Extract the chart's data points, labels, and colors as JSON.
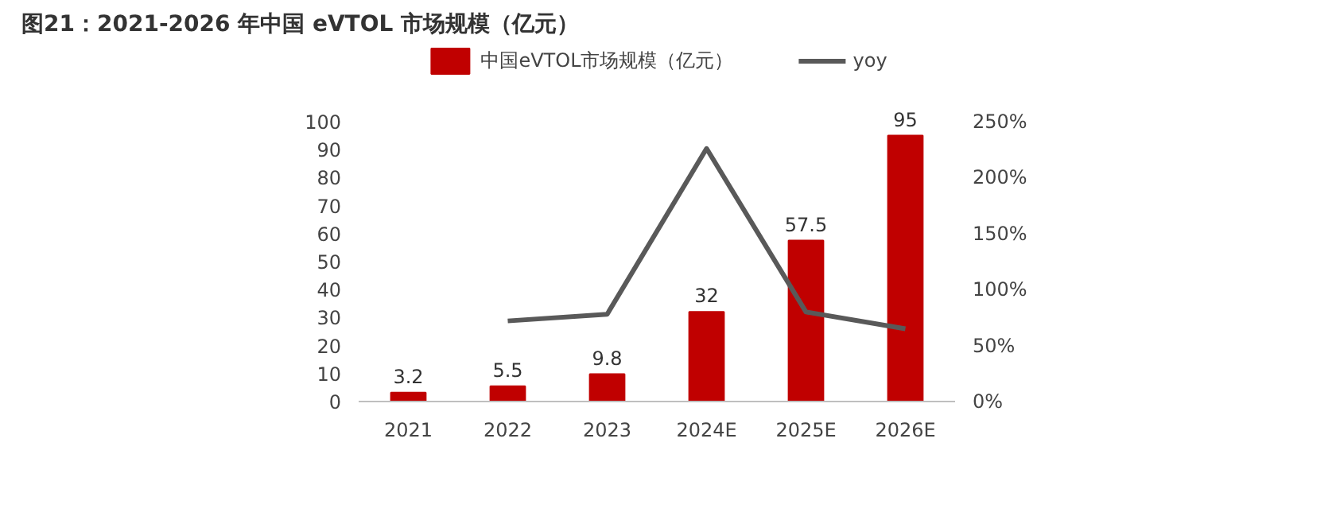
{
  "chart_data": {
    "type": "bar",
    "title": "图21：2021-2026 年中国 eVTOL 市场规模（亿元）",
    "categories": [
      "2021",
      "2022",
      "2023",
      "2024E",
      "2025E",
      "2026E"
    ],
    "series": [
      {
        "name": "中国eVTOL市场规模（亿元）",
        "color": "#c00000",
        "values": [
          3.2,
          5.5,
          9.8,
          32,
          57.5,
          95
        ],
        "value_labels": [
          "3.2",
          "5.5",
          "9.8",
          "32",
          "57.5",
          "95"
        ]
      },
      {
        "name": "yoy",
        "type": "line",
        "axis": "y2",
        "color": "#595959",
        "values": [
          null,
          72,
          78,
          226,
          80,
          65
        ]
      }
    ],
    "ylim": [
      0,
      100
    ],
    "yticks": [
      0,
      10,
      20,
      30,
      40,
      50,
      60,
      70,
      80,
      90,
      100
    ],
    "y2lim": [
      0,
      250
    ],
    "y2ticks": [
      {
        "value": 0,
        "label": "0%"
      },
      {
        "value": 50,
        "label": "50%"
      },
      {
        "value": 100,
        "label": "100%"
      },
      {
        "value": 150,
        "label": "150%"
      },
      {
        "value": 200,
        "label": "200%"
      },
      {
        "value": 250,
        "label": "250%"
      }
    ],
    "grid": false,
    "legend": "top",
    "marker": "none",
    "line_style": "solid"
  }
}
